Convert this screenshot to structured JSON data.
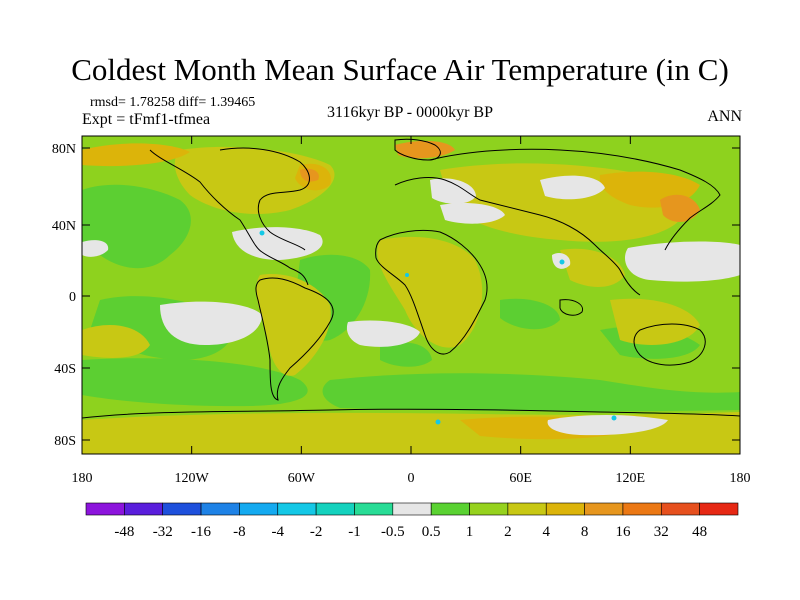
{
  "title": "Coldest Month Mean Surface Air Temperature (in C)",
  "stats": "rmsd= 1.78258 diff= 1.39465",
  "experiment": "Expt = tFmf1-tfmea",
  "period": "3116kyr BP - 0000kyr BP",
  "season": "ANN",
  "map": {
    "lat_labels": [
      "80N",
      "40N",
      "0",
      "40S",
      "80S"
    ],
    "lon_labels": [
      "180",
      "120W",
      "60W",
      "0",
      "60E",
      "120E",
      "180"
    ]
  },
  "colorbar": {
    "labels": [
      "-48",
      "-32",
      "-16",
      "-8",
      "-4",
      "-2",
      "-1",
      "-0.5",
      "0.5",
      "1",
      "2",
      "4",
      "8",
      "16",
      "32",
      "48"
    ],
    "colors": [
      "#8c14dc",
      "#5a1edc",
      "#1e50dc",
      "#1e82e6",
      "#14aaf0",
      "#14c8e6",
      "#14d2be",
      "#28dc96",
      "#e6e6e6",
      "#5ad232",
      "#96d21e",
      "#c8c814",
      "#dcb40a",
      "#e6961e",
      "#eb7814",
      "#e6501e",
      "#e62814"
    ]
  },
  "palette": {
    "background_green": "#8ed21e",
    "ocean_green": "#5ccf32",
    "land_yellow": "#c8c814",
    "warm_gold": "#dcb40a",
    "orange": "#e6961e",
    "neutral": "#e6e6e6",
    "cyan": "#14c8e6",
    "coast": "#000000"
  }
}
